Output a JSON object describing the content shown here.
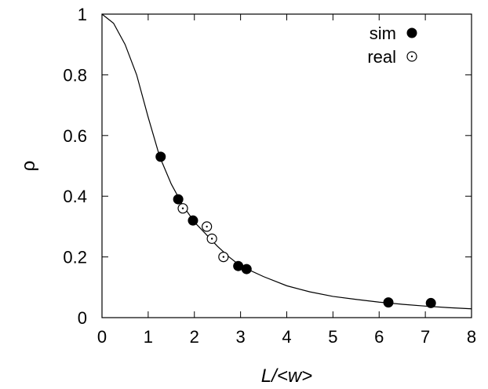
{
  "chart_data": {
    "type": "scatter",
    "xlabel": "L/<w>",
    "ylabel": "ρ",
    "xlim": [
      0,
      8
    ],
    "ylim": [
      0,
      1
    ],
    "xticks": [
      "0",
      "1",
      "2",
      "3",
      "4",
      "5",
      "6",
      "7",
      "8"
    ],
    "yticks": [
      "0",
      "0.2",
      "0.4",
      "0.6",
      "0.8",
      "1"
    ],
    "grid": false,
    "legend_position": "top-right",
    "series": [
      {
        "name": "sim",
        "marker": "filled-circle",
        "color": "#000000",
        "points": [
          {
            "x": 1.27,
            "y": 0.53
          },
          {
            "x": 1.65,
            "y": 0.39
          },
          {
            "x": 1.97,
            "y": 0.32
          },
          {
            "x": 2.95,
            "y": 0.17
          },
          {
            "x": 3.13,
            "y": 0.16
          },
          {
            "x": 6.2,
            "y": 0.05
          },
          {
            "x": 7.12,
            "y": 0.048
          }
        ]
      },
      {
        "name": "real",
        "marker": "open-circle-dot",
        "color": "#000000",
        "points": [
          {
            "x": 1.75,
            "y": 0.36
          },
          {
            "x": 2.27,
            "y": 0.3
          },
          {
            "x": 2.38,
            "y": 0.26
          },
          {
            "x": 2.63,
            "y": 0.2
          }
        ]
      }
    ],
    "curve": {
      "type": "line",
      "color": "#000000",
      "points": [
        {
          "x": 0.0,
          "y": 1.0
        },
        {
          "x": 0.25,
          "y": 0.97
        },
        {
          "x": 0.5,
          "y": 0.9
        },
        {
          "x": 0.75,
          "y": 0.8
        },
        {
          "x": 1.0,
          "y": 0.66
        },
        {
          "x": 1.25,
          "y": 0.53
        },
        {
          "x": 1.5,
          "y": 0.44
        },
        {
          "x": 1.75,
          "y": 0.37
        },
        {
          "x": 2.0,
          "y": 0.315
        },
        {
          "x": 2.25,
          "y": 0.275
        },
        {
          "x": 2.5,
          "y": 0.235
        },
        {
          "x": 2.75,
          "y": 0.2
        },
        {
          "x": 3.0,
          "y": 0.17
        },
        {
          "x": 3.5,
          "y": 0.135
        },
        {
          "x": 4.0,
          "y": 0.105
        },
        {
          "x": 4.5,
          "y": 0.085
        },
        {
          "x": 5.0,
          "y": 0.07
        },
        {
          "x": 5.5,
          "y": 0.06
        },
        {
          "x": 6.0,
          "y": 0.051
        },
        {
          "x": 6.5,
          "y": 0.044
        },
        {
          "x": 7.0,
          "y": 0.038
        },
        {
          "x": 7.5,
          "y": 0.033
        },
        {
          "x": 8.0,
          "y": 0.029
        }
      ]
    }
  }
}
